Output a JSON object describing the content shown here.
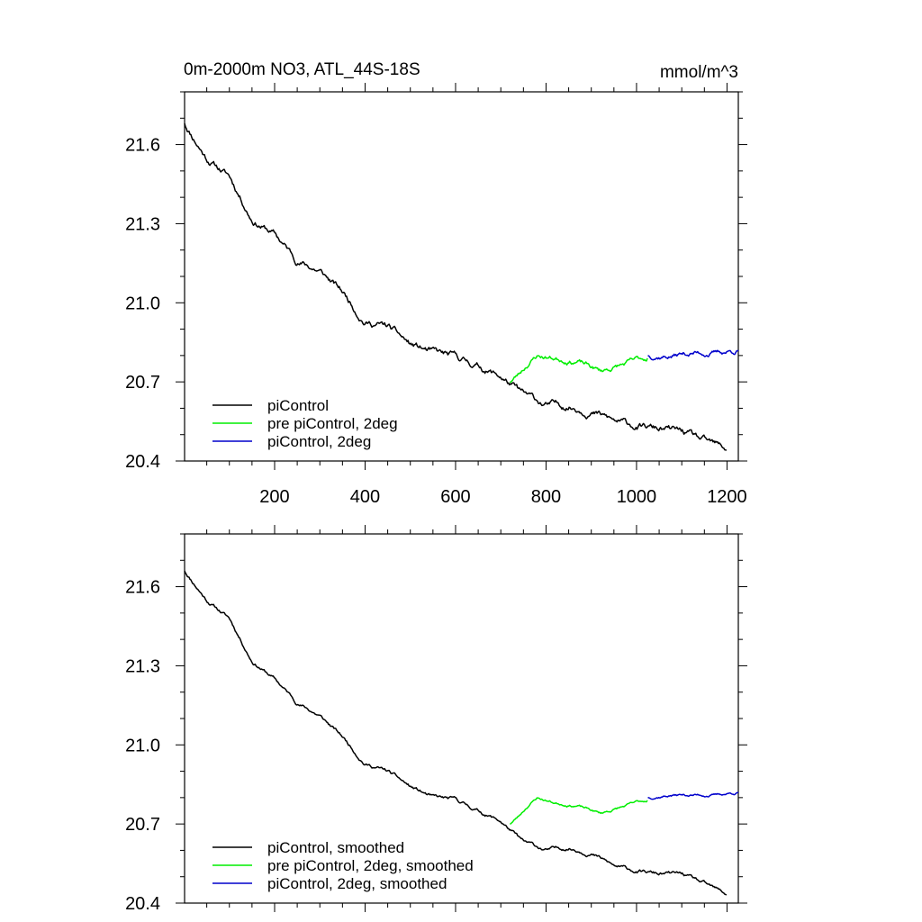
{
  "page": {
    "title_left": "0m-2000m NO3, ATL_44S-18S",
    "title_right": "mmol/m^3"
  },
  "colors": {
    "black": "#000000",
    "green": "#00ee00",
    "blue": "#0000cc"
  },
  "chart_data": [
    {
      "type": "line",
      "title": "0m-2000m NO3, ATL_44S-18S",
      "units": "mmol/m^3",
      "xlim": [
        1,
        1225
      ],
      "ylim": [
        20.4,
        21.8
      ],
      "xticks": [
        200,
        400,
        600,
        800,
        1000,
        1200
      ],
      "xticklabels": [
        "200",
        "400",
        "600",
        "800",
        "1000",
        "1200"
      ],
      "yticks": [
        20.4,
        20.7,
        21.0,
        21.3,
        21.6
      ],
      "yticklabels": [
        "20.4",
        "20.7",
        "21.0",
        "21.3",
        "21.6"
      ],
      "grid": false,
      "legend_position": "bottom-left",
      "series": [
        {
          "name": "piControl",
          "color": "#000000",
          "noise": 0.013,
          "seed": 11,
          "points": [
            [
              1,
              21.68
            ],
            [
              50,
              21.55
            ],
            [
              100,
              21.48
            ],
            [
              150,
              21.32
            ],
            [
              200,
              21.26
            ],
            [
              250,
              21.16
            ],
            [
              300,
              21.12
            ],
            [
              350,
              21.04
            ],
            [
              400,
              20.93
            ],
            [
              450,
              20.91
            ],
            [
              500,
              20.84
            ],
            [
              550,
              20.81
            ],
            [
              600,
              20.79
            ],
            [
              650,
              20.76
            ],
            [
              700,
              20.72
            ],
            [
              750,
              20.65
            ],
            [
              800,
              20.61
            ],
            [
              850,
              20.61
            ],
            [
              900,
              20.59
            ],
            [
              950,
              20.55
            ],
            [
              1000,
              20.53
            ],
            [
              1050,
              20.52
            ],
            [
              1100,
              20.51
            ],
            [
              1150,
              20.47
            ],
            [
              1200,
              20.44
            ]
          ]
        },
        {
          "name": "pre piControl, 2deg",
          "color": "#00ee00",
          "noise": 0.01,
          "seed": 23,
          "points": [
            [
              720,
              20.7
            ],
            [
              740,
              20.73
            ],
            [
              760,
              20.77
            ],
            [
              780,
              20.8
            ],
            [
              820,
              20.79
            ],
            [
              870,
              20.78
            ],
            [
              920,
              20.74
            ],
            [
              960,
              20.76
            ],
            [
              1000,
              20.78
            ],
            [
              1025,
              20.79
            ]
          ]
        },
        {
          "name": "piControl, 2deg",
          "color": "#0000cc",
          "noise": 0.01,
          "seed": 37,
          "points": [
            [
              1025,
              20.8
            ],
            [
              1075,
              20.8
            ],
            [
              1125,
              20.81
            ],
            [
              1175,
              20.81
            ],
            [
              1225,
              20.82
            ]
          ]
        }
      ]
    },
    {
      "type": "line",
      "xlim": [
        1,
        1225
      ],
      "ylim": [
        20.4,
        21.8
      ],
      "xticks": [
        200,
        400,
        600,
        800,
        1000,
        1200
      ],
      "yticks": [
        20.4,
        20.7,
        21.0,
        21.3,
        21.6
      ],
      "yticklabels": [
        "20.4",
        "20.7",
        "21.0",
        "21.3",
        "21.6"
      ],
      "grid": false,
      "legend_position": "bottom-left",
      "series": [
        {
          "name": "piControl, smoothed",
          "color": "#000000",
          "noise": 0.007,
          "seed": 11,
          "points": [
            [
              1,
              21.66
            ],
            [
              50,
              21.55
            ],
            [
              100,
              21.48
            ],
            [
              150,
              21.32
            ],
            [
              200,
              21.25
            ],
            [
              250,
              21.16
            ],
            [
              300,
              21.11
            ],
            [
              350,
              21.03
            ],
            [
              400,
              20.93
            ],
            [
              450,
              20.9
            ],
            [
              500,
              20.84
            ],
            [
              550,
              20.8
            ],
            [
              600,
              20.79
            ],
            [
              650,
              20.75
            ],
            [
              700,
              20.71
            ],
            [
              750,
              20.63
            ],
            [
              800,
              20.6
            ],
            [
              850,
              20.61
            ],
            [
              900,
              20.59
            ],
            [
              950,
              20.54
            ],
            [
              1000,
              20.52
            ],
            [
              1050,
              20.51
            ],
            [
              1100,
              20.51
            ],
            [
              1150,
              20.47
            ],
            [
              1200,
              20.43
            ]
          ]
        },
        {
          "name": "pre piControl, 2deg, smoothed",
          "color": "#00ee00",
          "noise": 0.005,
          "seed": 23,
          "points": [
            [
              720,
              20.7
            ],
            [
              740,
              20.73
            ],
            [
              760,
              20.77
            ],
            [
              780,
              20.8
            ],
            [
              820,
              20.78
            ],
            [
              870,
              20.77
            ],
            [
              920,
              20.74
            ],
            [
              960,
              20.76
            ],
            [
              1000,
              20.78
            ],
            [
              1025,
              20.79
            ]
          ]
        },
        {
          "name": "piControl, 2deg, smoothed",
          "color": "#0000cc",
          "noise": 0.005,
          "seed": 37,
          "points": [
            [
              1025,
              20.8
            ],
            [
              1075,
              20.81
            ],
            [
              1125,
              20.81
            ],
            [
              1175,
              20.81
            ],
            [
              1225,
              20.82
            ]
          ]
        }
      ]
    }
  ]
}
